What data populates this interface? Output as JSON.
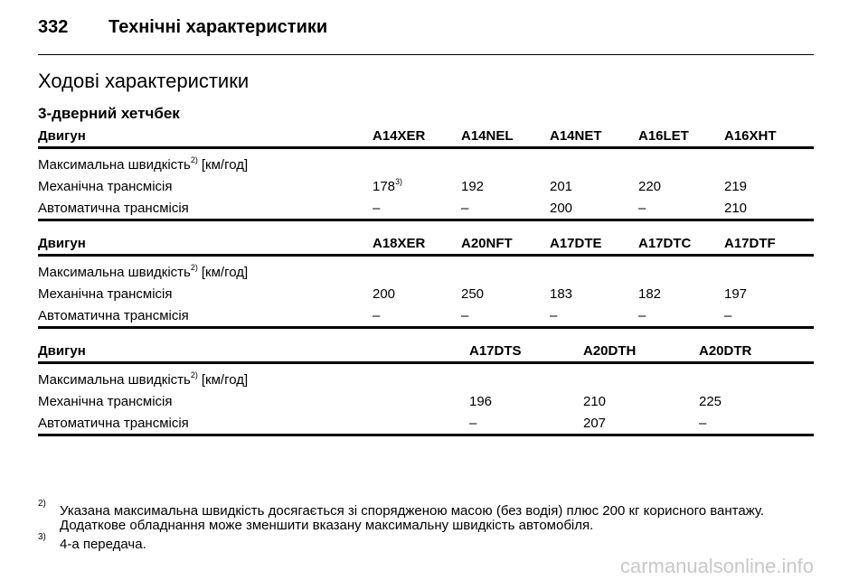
{
  "header": {
    "page_number": "332",
    "title": "Технічні характеристики"
  },
  "section_title": "Ходові характеристики",
  "subsection_title": "3-дверний хетчбек",
  "tables": [
    {
      "header": [
        "Двигун",
        "A14XER",
        "A14NEL",
        "A14NET",
        "A16LET",
        "A16XHT"
      ],
      "caption": "Максимальна швидкість",
      "caption_note": "2)",
      "caption_unit": "[км/год]",
      "rows": [
        [
          {
            "text": "Механічна трансмісія"
          },
          {
            "text": "178",
            "note": "3)"
          },
          {
            "text": "192"
          },
          {
            "text": "201"
          },
          {
            "text": "220"
          },
          {
            "text": "219"
          }
        ],
        [
          {
            "text": "Автоматична трансмісія"
          },
          {
            "text": "–"
          },
          {
            "text": "–"
          },
          {
            "text": "200"
          },
          {
            "text": "–"
          },
          {
            "text": "210"
          }
        ]
      ]
    },
    {
      "header": [
        "Двигун",
        "A18XER",
        "A20NFT",
        "A17DTE",
        "A17DTC",
        "A17DTF"
      ],
      "caption": "Максимальна швидкість",
      "caption_note": "2)",
      "caption_unit": "[км/год]",
      "rows": [
        [
          {
            "text": "Механічна трансмісія"
          },
          {
            "text": "200"
          },
          {
            "text": "250"
          },
          {
            "text": "183"
          },
          {
            "text": "182"
          },
          {
            "text": "197"
          }
        ],
        [
          {
            "text": "Автоматична трансмісія"
          },
          {
            "text": "–"
          },
          {
            "text": "–"
          },
          {
            "text": "–"
          },
          {
            "text": "–"
          },
          {
            "text": "–"
          }
        ]
      ]
    },
    {
      "header": [
        "Двигун",
        "A17DTS",
        "A20DTH",
        "A20DTR"
      ],
      "caption": "Максимальна швидкість",
      "caption_note": "2)",
      "caption_unit": "[км/год]",
      "rows": [
        [
          {
            "text": "Механічна трансмісія"
          },
          {
            "text": "196"
          },
          {
            "text": "210"
          },
          {
            "text": "225"
          }
        ],
        [
          {
            "text": "Автоматична трансмісія"
          },
          {
            "text": "–"
          },
          {
            "text": "207"
          },
          {
            "text": "–"
          }
        ]
      ]
    }
  ],
  "footnotes": [
    {
      "mark": "2)",
      "text": "Указана максимальна швидкість досягається зі спорядженою масою (без водія) плюс 200 кг корисного вантажу. Додаткове обладнання може зменшити вказану максимальну швидкість автомобіля."
    },
    {
      "mark": "3)",
      "text": "4-а передача."
    }
  ],
  "watermark": "carmanualsonline.info"
}
